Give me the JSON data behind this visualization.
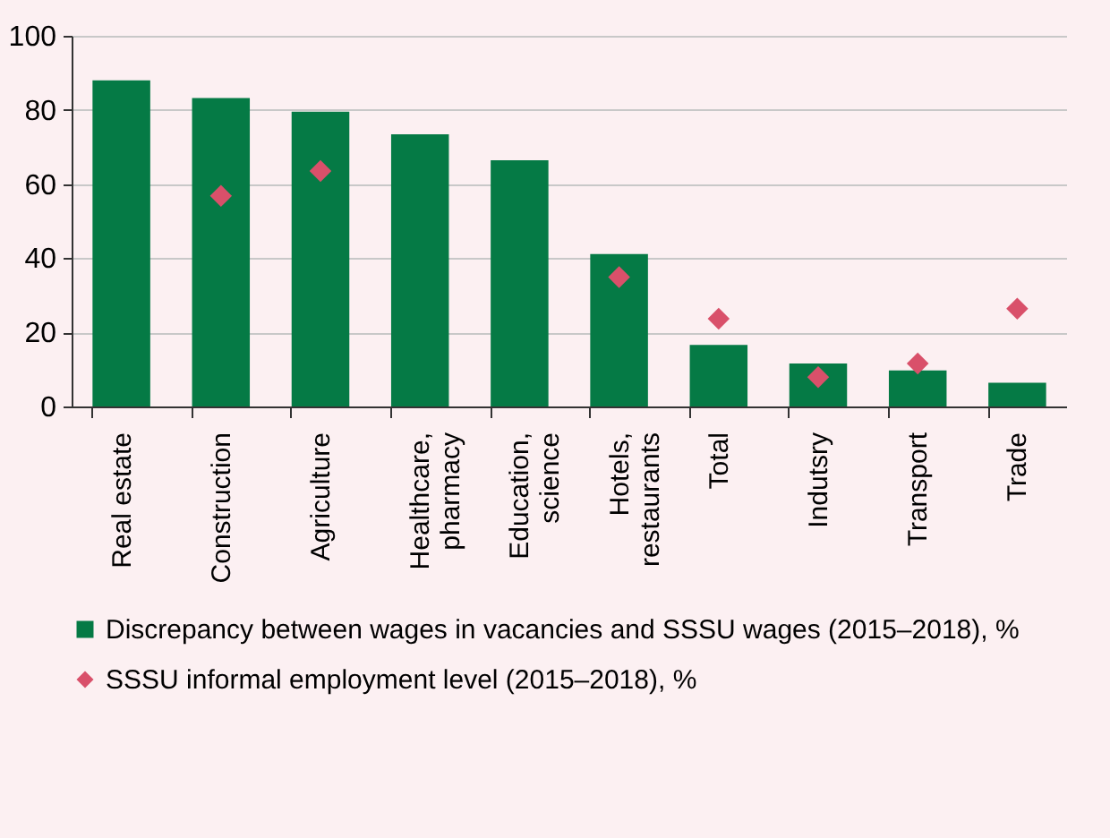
{
  "chart_data": {
    "type": "bar",
    "categories": [
      "Real estate",
      "Construction",
      "Agriculture",
      "Healthcare,\npharmacy",
      "Education,\nscience",
      "Hotels,\nrestaurants",
      "Total",
      "Indutsry",
      "Transport",
      "Trade"
    ],
    "series": [
      {
        "name": "Discrepancy between wages in vacancies and SSSU wages (2015–2018), %",
        "color": "#057a45",
        "values": [
          88.0,
          83.2,
          79.5,
          73.4,
          66.4,
          41.1,
          16.6,
          11.6,
          9.7,
          6.4
        ]
      },
      {
        "name": "SSSU informal employment level (2015–2018), %",
        "type": "scatter",
        "marker": "diamond",
        "color": "#d9506a",
        "values": [
          null,
          56.8,
          63.5,
          null,
          null,
          34.9,
          23.7,
          7.9,
          11.6,
          26.4
        ]
      }
    ],
    "ylim": [
      0,
      100
    ],
    "yticks": [
      0,
      20,
      40,
      60,
      80,
      100
    ],
    "grid": "y",
    "legend": "bottom"
  }
}
